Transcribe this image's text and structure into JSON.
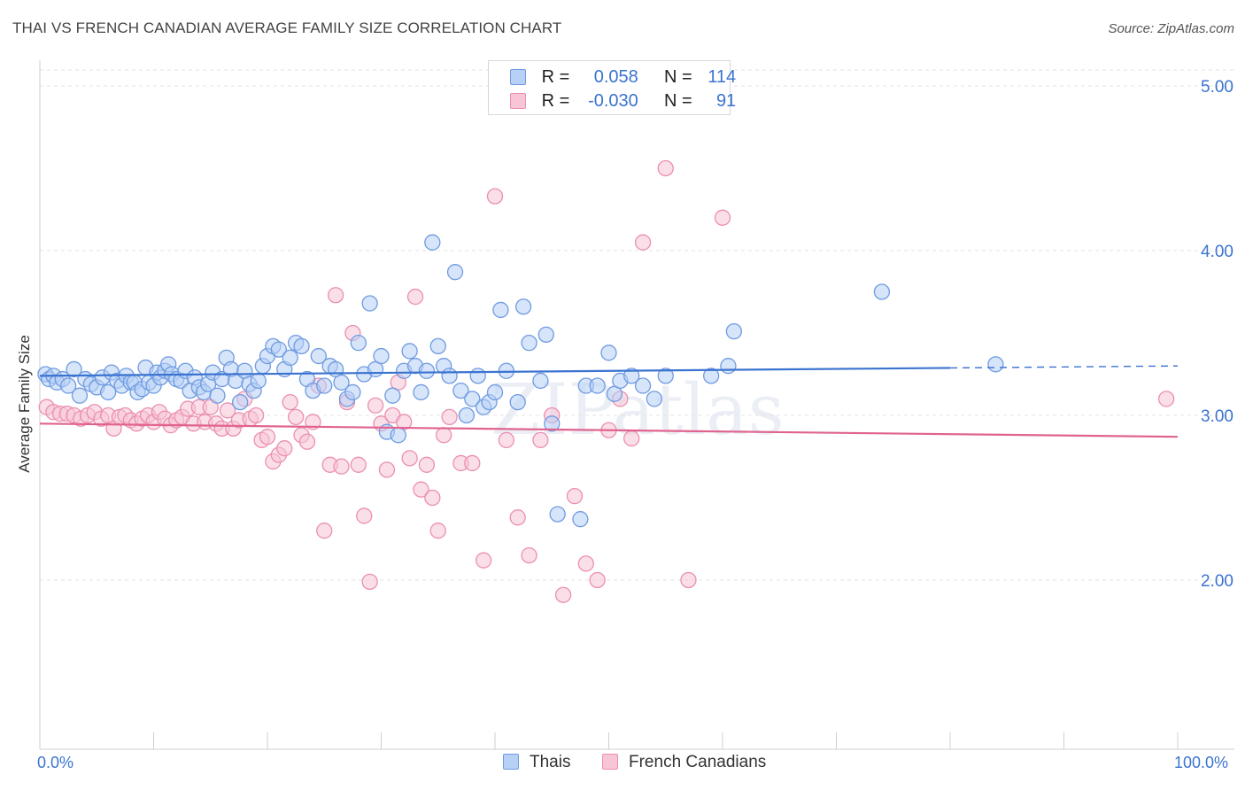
{
  "title": "THAI VS FRENCH CANADIAN AVERAGE FAMILY SIZE CORRELATION CHART",
  "source": "Source: ZipAtlas.com",
  "watermark": "ZIPatlas",
  "legend": {
    "rows": [
      {
        "r_label": "R =",
        "r_value": "0.058",
        "n_label": "N =",
        "n_value": "114",
        "color": "#6f9be0"
      },
      {
        "r_label": "R =",
        "r_value": "-0.030",
        "n_label": "N =",
        "n_value": "91",
        "color": "#eb8fb0"
      }
    ],
    "series_labels": [
      "Thais",
      "French Canadians"
    ]
  },
  "colors": {
    "blue": "#3b73d0",
    "blue_fill": "#b7d0f5",
    "pink": "#e0638f",
    "pink_fill": "#f8c5d6",
    "axis_text": "#3b73d0",
    "grid": "#e3e3e3"
  },
  "chart_data": {
    "type": "scatter",
    "title": "THAI VS FRENCH CANADIAN AVERAGE FAMILY SIZE CORRELATION CHART",
    "xlabel": "",
    "ylabel": "Average Family Size",
    "xlim": [
      0,
      100
    ],
    "ylim": [
      1.2,
      5.1
    ],
    "x_tick_labels": [
      "0.0%",
      "100.0%"
    ],
    "y_ticks": [
      2.0,
      3.0,
      4.0,
      5.0
    ],
    "y_tick_labels": [
      "2.00",
      "3.00",
      "4.00",
      "5.00"
    ],
    "grid": true,
    "legend_position": "top-center",
    "series": [
      {
        "name": "Thais",
        "r": 0.058,
        "n": 114,
        "trend": {
          "x0": 0,
          "y0": 3.24,
          "x1": 100,
          "y1": 3.3,
          "solid_until": 80
        },
        "points": [
          [
            0.5,
            3.25
          ],
          [
            0.8,
            3.22
          ],
          [
            1.2,
            3.24
          ],
          [
            1.5,
            3.2
          ],
          [
            2.0,
            3.22
          ],
          [
            2.5,
            3.18
          ],
          [
            3.0,
            3.28
          ],
          [
            3.5,
            3.12
          ],
          [
            4.0,
            3.22
          ],
          [
            4.5,
            3.19
          ],
          [
            5.0,
            3.17
          ],
          [
            5.5,
            3.23
          ],
          [
            6.0,
            3.14
          ],
          [
            6.3,
            3.26
          ],
          [
            6.8,
            3.21
          ],
          [
            7.2,
            3.18
          ],
          [
            7.6,
            3.24
          ],
          [
            8.0,
            3.2
          ],
          [
            8.3,
            3.2
          ],
          [
            8.6,
            3.14
          ],
          [
            9.0,
            3.16
          ],
          [
            9.3,
            3.29
          ],
          [
            9.6,
            3.2
          ],
          [
            10.0,
            3.18
          ],
          [
            10.3,
            3.26
          ],
          [
            10.6,
            3.23
          ],
          [
            11.0,
            3.27
          ],
          [
            11.3,
            3.31
          ],
          [
            11.6,
            3.25
          ],
          [
            12.0,
            3.22
          ],
          [
            12.4,
            3.21
          ],
          [
            12.8,
            3.27
          ],
          [
            13.2,
            3.15
          ],
          [
            13.6,
            3.23
          ],
          [
            14.0,
            3.17
          ],
          [
            14.4,
            3.14
          ],
          [
            14.8,
            3.19
          ],
          [
            15.2,
            3.26
          ],
          [
            15.6,
            3.12
          ],
          [
            16.0,
            3.22
          ],
          [
            16.4,
            3.35
          ],
          [
            16.8,
            3.28
          ],
          [
            17.2,
            3.21
          ],
          [
            17.6,
            3.08
          ],
          [
            18.0,
            3.27
          ],
          [
            18.4,
            3.19
          ],
          [
            18.8,
            3.15
          ],
          [
            19.2,
            3.21
          ],
          [
            19.6,
            3.3
          ],
          [
            20.0,
            3.36
          ],
          [
            20.5,
            3.42
          ],
          [
            21.0,
            3.4
          ],
          [
            21.5,
            3.28
          ],
          [
            22.0,
            3.35
          ],
          [
            22.5,
            3.44
          ],
          [
            23.0,
            3.42
          ],
          [
            23.5,
            3.22
          ],
          [
            24.0,
            3.15
          ],
          [
            24.5,
            3.36
          ],
          [
            25.0,
            3.18
          ],
          [
            25.5,
            3.3
          ],
          [
            26.0,
            3.28
          ],
          [
            26.5,
            3.2
          ],
          [
            27.0,
            3.1
          ],
          [
            27.5,
            3.14
          ],
          [
            28.0,
            3.44
          ],
          [
            28.5,
            3.25
          ],
          [
            29.0,
            3.68
          ],
          [
            29.5,
            3.28
          ],
          [
            30.0,
            3.36
          ],
          [
            30.5,
            2.9
          ],
          [
            31.0,
            3.12
          ],
          [
            31.5,
            2.88
          ],
          [
            32.0,
            3.27
          ],
          [
            32.5,
            3.39
          ],
          [
            33.0,
            3.3
          ],
          [
            33.5,
            3.14
          ],
          [
            34.0,
            3.27
          ],
          [
            34.5,
            4.05
          ],
          [
            35.0,
            3.42
          ],
          [
            35.5,
            3.3
          ],
          [
            36.0,
            3.24
          ],
          [
            36.5,
            3.87
          ],
          [
            37.0,
            3.15
          ],
          [
            37.5,
            3.0
          ],
          [
            38.0,
            3.1
          ],
          [
            38.5,
            3.24
          ],
          [
            39.0,
            3.05
          ],
          [
            39.5,
            3.08
          ],
          [
            40.0,
            3.14
          ],
          [
            40.5,
            3.64
          ],
          [
            41.0,
            3.27
          ],
          [
            42.0,
            3.08
          ],
          [
            42.5,
            3.66
          ],
          [
            43.0,
            3.44
          ],
          [
            44.0,
            3.21
          ],
          [
            44.5,
            3.49
          ],
          [
            45.0,
            2.95
          ],
          [
            45.5,
            2.4
          ],
          [
            47.5,
            2.37
          ],
          [
            48.0,
            3.18
          ],
          [
            49.0,
            3.18
          ],
          [
            50.0,
            3.38
          ],
          [
            50.5,
            3.13
          ],
          [
            51.0,
            3.21
          ],
          [
            52.0,
            3.24
          ],
          [
            53.0,
            3.18
          ],
          [
            54.0,
            3.1
          ],
          [
            55.0,
            3.24
          ],
          [
            59.0,
            3.24
          ],
          [
            60.5,
            3.3
          ],
          [
            61.0,
            3.51
          ],
          [
            74.0,
            3.75
          ],
          [
            84.0,
            3.31
          ]
        ]
      },
      {
        "name": "French Canadians",
        "r": -0.03,
        "n": 91,
        "trend": {
          "x0": 0,
          "y0": 2.95,
          "x1": 100,
          "y1": 2.87,
          "solid_until": 100
        },
        "points": [
          [
            0.6,
            3.05
          ],
          [
            1.2,
            3.02
          ],
          [
            1.8,
            3.01
          ],
          [
            2.4,
            3.01
          ],
          [
            3.0,
            3.0
          ],
          [
            3.6,
            2.98
          ],
          [
            4.2,
            3.0
          ],
          [
            4.8,
            3.02
          ],
          [
            5.4,
            2.98
          ],
          [
            6.0,
            3.0
          ],
          [
            6.5,
            2.92
          ],
          [
            7.0,
            2.99
          ],
          [
            7.5,
            3.0
          ],
          [
            8.0,
            2.97
          ],
          [
            8.5,
            2.95
          ],
          [
            9.0,
            2.98
          ],
          [
            9.5,
            3.0
          ],
          [
            10.0,
            2.96
          ],
          [
            10.5,
            3.02
          ],
          [
            11.0,
            2.98
          ],
          [
            11.5,
            2.94
          ],
          [
            12.0,
            2.97
          ],
          [
            12.5,
            2.99
          ],
          [
            13.0,
            3.04
          ],
          [
            13.5,
            2.95
          ],
          [
            14.0,
            3.05
          ],
          [
            14.5,
            2.96
          ],
          [
            15.0,
            3.05
          ],
          [
            15.5,
            2.95
          ],
          [
            16.0,
            2.92
          ],
          [
            16.5,
            3.03
          ],
          [
            17.0,
            2.92
          ],
          [
            17.5,
            2.97
          ],
          [
            18.0,
            3.1
          ],
          [
            18.5,
            2.98
          ],
          [
            19.0,
            3.0
          ],
          [
            19.5,
            2.85
          ],
          [
            20.0,
            2.87
          ],
          [
            20.5,
            2.72
          ],
          [
            21.0,
            2.76
          ],
          [
            21.5,
            2.8
          ],
          [
            22.0,
            3.08
          ],
          [
            22.5,
            2.99
          ],
          [
            23.0,
            2.88
          ],
          [
            23.5,
            2.84
          ],
          [
            24.0,
            2.96
          ],
          [
            24.5,
            3.18
          ],
          [
            25.0,
            2.3
          ],
          [
            25.5,
            2.7
          ],
          [
            26.0,
            3.73
          ],
          [
            26.5,
            2.69
          ],
          [
            27.0,
            3.08
          ],
          [
            27.5,
            3.5
          ],
          [
            28.0,
            2.7
          ],
          [
            28.5,
            2.39
          ],
          [
            29.0,
            1.99
          ],
          [
            29.5,
            3.06
          ],
          [
            30.0,
            2.95
          ],
          [
            30.5,
            2.67
          ],
          [
            31.0,
            3.0
          ],
          [
            31.5,
            3.2
          ],
          [
            32.0,
            2.96
          ],
          [
            32.5,
            2.74
          ],
          [
            33.0,
            3.72
          ],
          [
            33.5,
            2.55
          ],
          [
            34.0,
            2.7
          ],
          [
            34.5,
            2.5
          ],
          [
            35.0,
            2.3
          ],
          [
            35.5,
            2.88
          ],
          [
            36.0,
            2.99
          ],
          [
            37.0,
            2.71
          ],
          [
            38.0,
            2.71
          ],
          [
            39.0,
            2.12
          ],
          [
            40.0,
            4.33
          ],
          [
            41.0,
            2.85
          ],
          [
            42.0,
            2.38
          ],
          [
            43.0,
            2.15
          ],
          [
            44.0,
            2.85
          ],
          [
            45.0,
            3.0
          ],
          [
            46.0,
            1.91
          ],
          [
            47.0,
            2.51
          ],
          [
            48.0,
            2.1
          ],
          [
            49.0,
            2.0
          ],
          [
            50.0,
            2.91
          ],
          [
            51.0,
            3.1
          ],
          [
            52.0,
            2.86
          ],
          [
            53.0,
            4.05
          ],
          [
            55.0,
            4.5
          ],
          [
            57.0,
            2.0
          ],
          [
            60.0,
            4.2
          ],
          [
            99.0,
            3.1
          ]
        ]
      }
    ]
  }
}
